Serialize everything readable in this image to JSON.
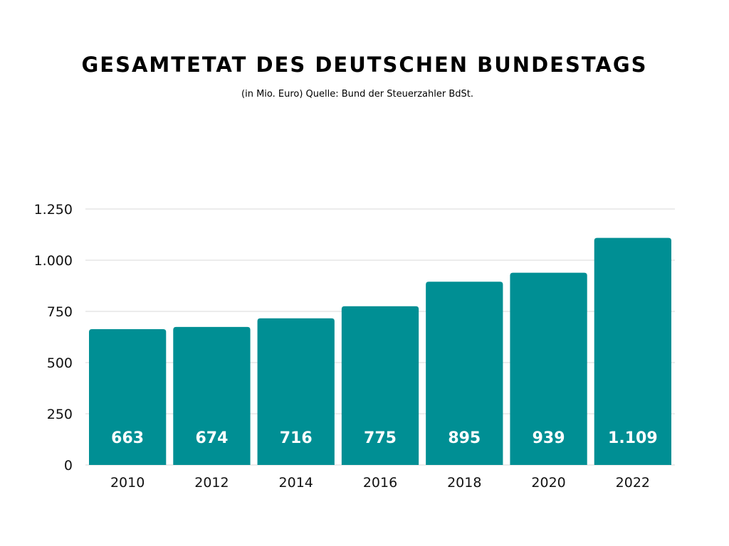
{
  "chart_data": {
    "type": "bar",
    "title": "GESAMTETAT DES DEUTSCHEN BUNDESTAGS",
    "subtitle": "(in Mio. Euro) Quelle: Bund der Steuerzahler BdSt.",
    "xlabel": "",
    "ylabel": "",
    "categories": [
      "2010",
      "2012",
      "2014",
      "2016",
      "2018",
      "2020",
      "2022"
    ],
    "values": [
      663,
      674,
      716,
      775,
      895,
      939,
      1109
    ],
    "value_labels": [
      "663",
      "674",
      "716",
      "775",
      "895",
      "939",
      "1.109"
    ],
    "ylim": [
      0,
      1250
    ],
    "yticks": [
      0,
      250,
      500,
      750,
      1000,
      1250
    ],
    "ytick_labels": [
      "0",
      "250",
      "500",
      "750",
      "1.000",
      "1.250"
    ],
    "grid": true,
    "legend": "none",
    "bar_color": "#008f94",
    "label_color": "#ffffff",
    "grid_color": "#d9d9d9"
  }
}
